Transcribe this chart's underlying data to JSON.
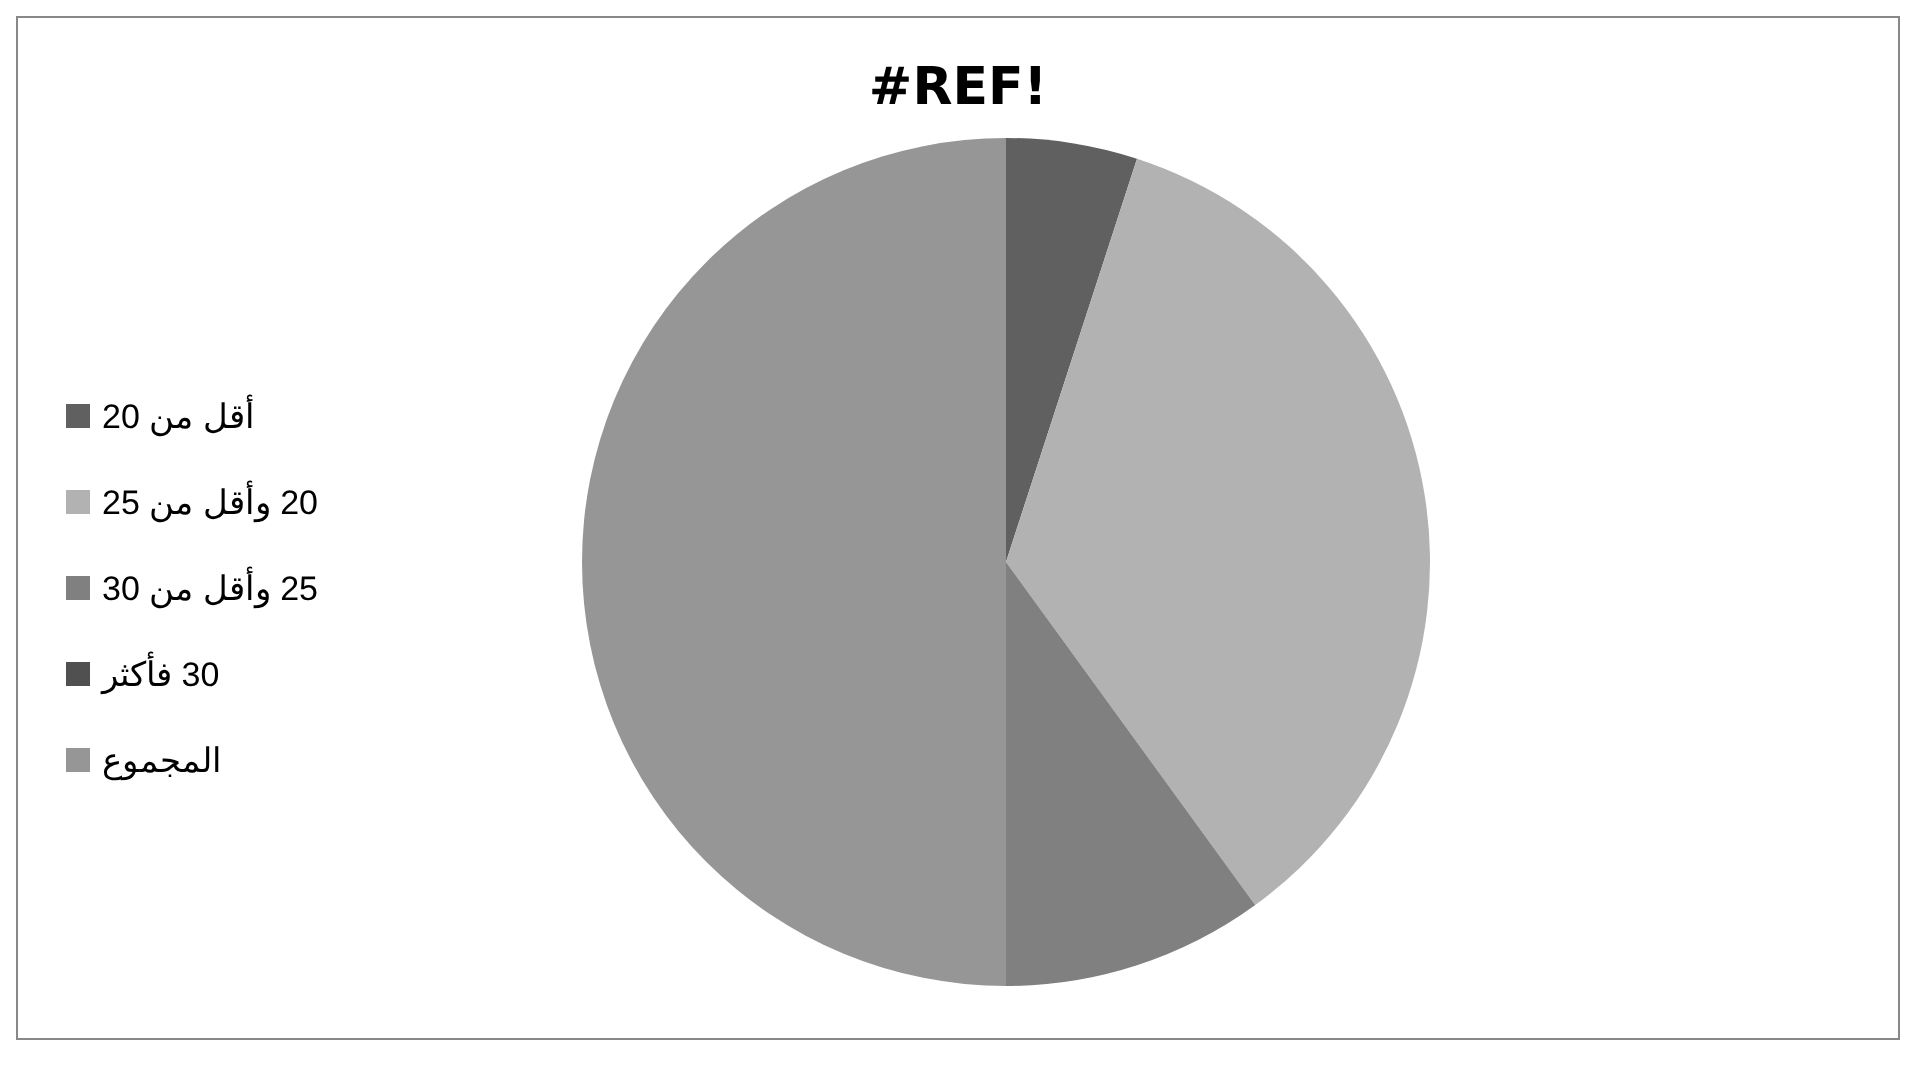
{
  "chart_data": {
    "type": "pie",
    "title": "#REF!",
    "categories": [
      "أقل من 20",
      "20 وأقل من 25",
      "25 وأقل من 30",
      "30 فأكثر",
      "المجموع"
    ],
    "values": [
      5,
      35,
      10,
      0,
      50
    ],
    "colors": [
      "#606060",
      "#b2b2b2",
      "#808080",
      "#505050",
      "#969696"
    ],
    "legend": "left"
  }
}
